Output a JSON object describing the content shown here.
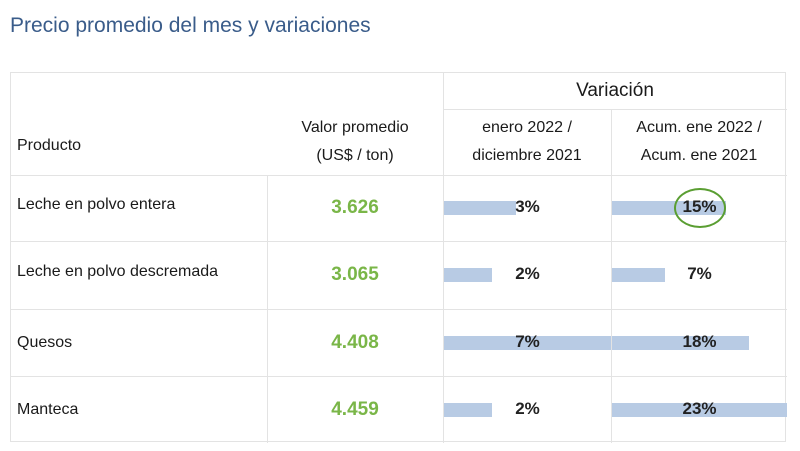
{
  "title": "Precio promedio del mes y variaciones",
  "table": {
    "group_header": "Variación",
    "columns": {
      "product": "Producto",
      "value_line1": "Valor promedio",
      "value_line2": "(US$ / ton)",
      "monthly_line1": "enero 2022 /",
      "monthly_line2": "diciembre 2021",
      "cumulative_line1": "Acum. ene 2022 /",
      "cumulative_line2": "Acum. ene 2021"
    },
    "rows": [
      {
        "product": "Leche en polvo entera",
        "value": "3.626",
        "monthly": "3%",
        "monthly_pct": 3,
        "cumulative": "15%",
        "cumulative_pct": 15,
        "highlight": true
      },
      {
        "product": "Leche en polvo descremada",
        "value": "3.065",
        "monthly": "2%",
        "monthly_pct": 2,
        "cumulative": "7%",
        "cumulative_pct": 7,
        "highlight": false
      },
      {
        "product": "Quesos",
        "value": "4.408",
        "monthly": "7%",
        "monthly_pct": 7,
        "cumulative": "18%",
        "cumulative_pct": 18,
        "highlight": false
      },
      {
        "product": "Manteca",
        "value": "4.459",
        "monthly": "2%",
        "monthly_pct": 2,
        "cumulative": "23%",
        "cumulative_pct": 23,
        "highlight": false
      }
    ]
  },
  "colors": {
    "title": "#3a5c8a",
    "value": "#7ab648",
    "bar": "#b8cbe4",
    "highlight_circle": "#5a9e32"
  }
}
